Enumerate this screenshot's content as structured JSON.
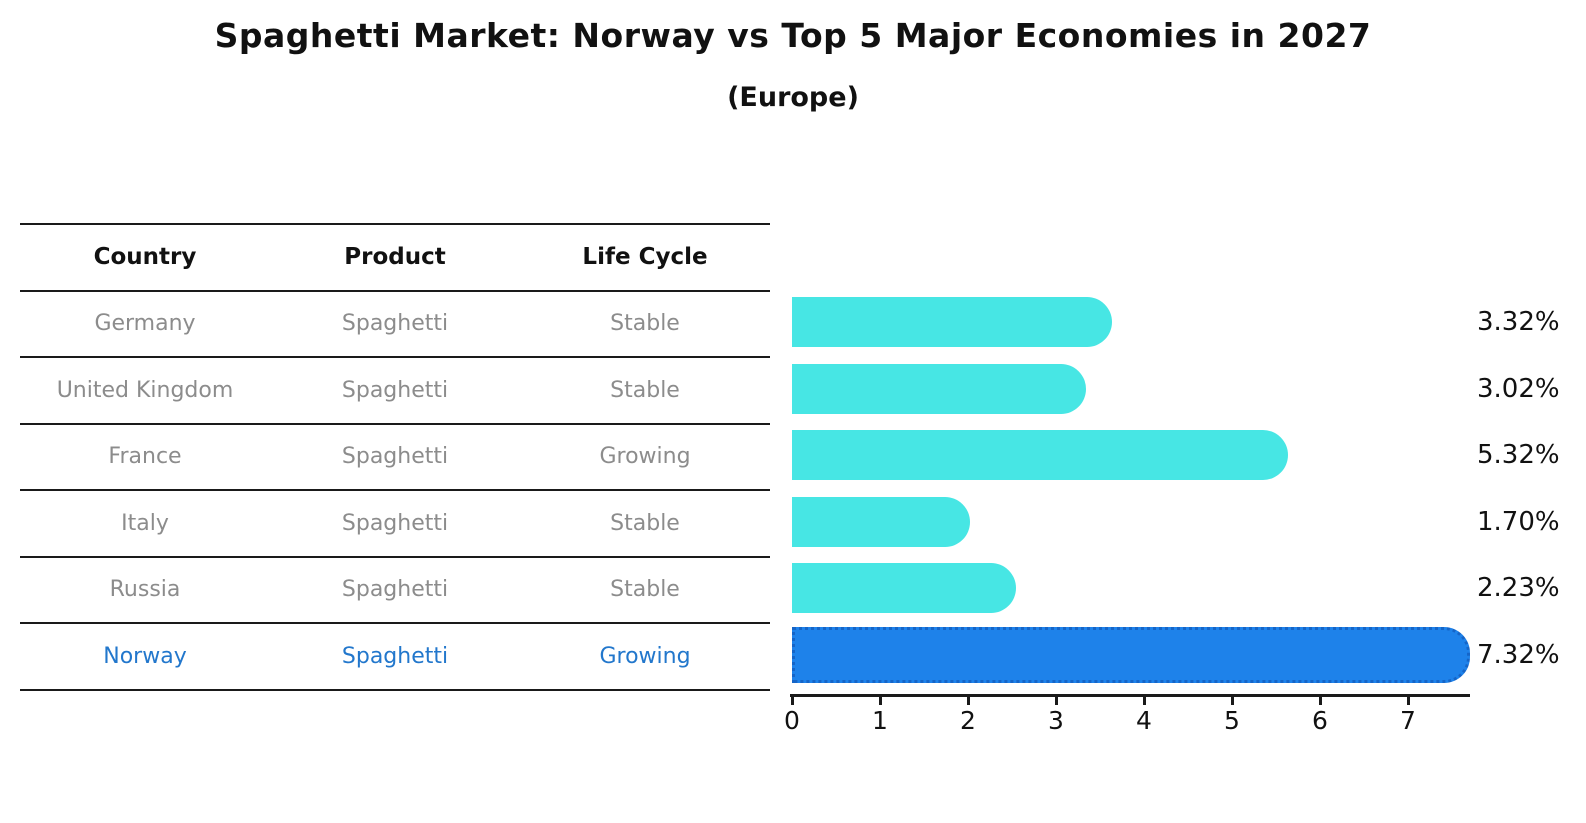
{
  "title": "Spaghetti Market: Norway vs Top 5 Major Economies in 2027",
  "subtitle": "(Europe)",
  "table": {
    "headers": [
      "Country",
      "Product",
      "Life Cycle"
    ],
    "rows": [
      {
        "country": "Germany",
        "product": "Spaghetti",
        "life_cycle": "Stable",
        "highlight": false
      },
      {
        "country": "United Kingdom",
        "product": "Spaghetti",
        "life_cycle": "Stable",
        "highlight": false
      },
      {
        "country": "France",
        "product": "Spaghetti",
        "life_cycle": "Growing",
        "highlight": false
      },
      {
        "country": "Italy",
        "product": "Spaghetti",
        "life_cycle": "Stable",
        "highlight": false
      },
      {
        "country": "Russia",
        "product": "Spaghetti",
        "life_cycle": "Stable",
        "highlight": false
      },
      {
        "country": "Norway",
        "product": "Spaghetti",
        "life_cycle": "Growing",
        "highlight": true
      }
    ]
  },
  "chart_data": {
    "type": "bar",
    "orientation": "horizontal",
    "title": "Spaghetti Market: Norway vs Top 5 Major Economies in 2027",
    "subtitle": "(Europe)",
    "categories": [
      "Germany",
      "United Kingdom",
      "France",
      "Italy",
      "Russia",
      "Norway"
    ],
    "values": [
      3.32,
      3.02,
      5.32,
      1.7,
      2.23,
      7.32
    ],
    "value_labels": [
      "3.32%",
      "3.02%",
      "5.32%",
      "1.70%",
      "2.23%",
      "7.32%"
    ],
    "x_ticks": [
      0,
      1,
      2,
      3,
      4,
      5,
      6,
      7
    ],
    "xlim": [
      0,
      7.7
    ],
    "grid": false,
    "legend": false,
    "highlight_index": 5,
    "colors": {
      "bar": "#47e6e4",
      "highlight_bar": "#1e82ea",
      "highlight_border": "#1565c8",
      "highlight_text": "#2277cc",
      "row_text": "#8c8c8c",
      "axis": "#1a1a1a"
    }
  }
}
